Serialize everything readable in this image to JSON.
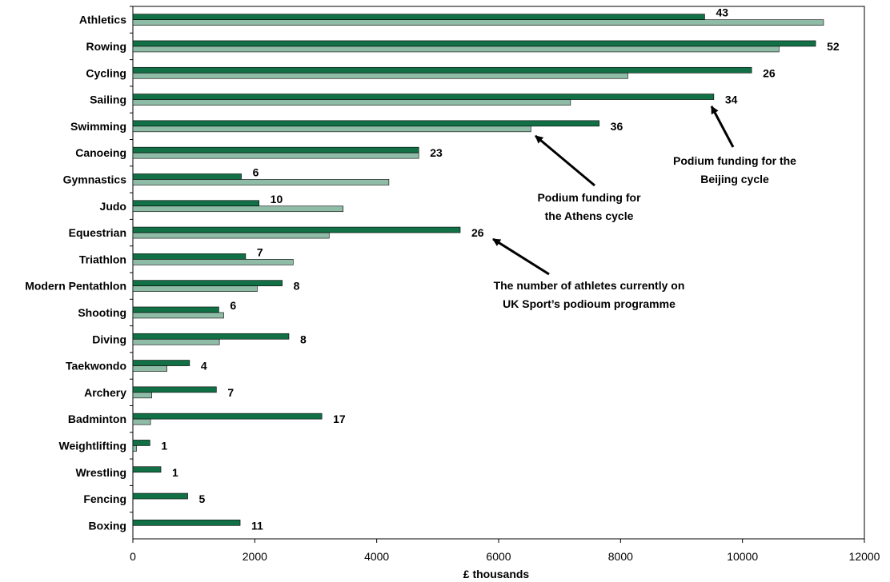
{
  "chart_data": {
    "type": "bar",
    "orientation": "horizontal",
    "xlabel": "£ thousands",
    "xlim": [
      0,
      12000
    ],
    "xticks": [
      0,
      2000,
      4000,
      6000,
      8000,
      10000,
      12000
    ],
    "grid": false,
    "categories": [
      "Athletics",
      "Rowing",
      "Cycling",
      "Sailing",
      "Swimming",
      "Canoeing",
      "Gymnastics",
      "Judo",
      "Equestrian",
      "Triathlon",
      "Modern Pentathlon",
      "Shooting",
      "Diving",
      "Taekwondo",
      "Archery",
      "Badminton",
      "Weightlifting",
      "Wrestling",
      "Fencing",
      "Boxing"
    ],
    "series": [
      {
        "color": "#127046",
        "values": [
          9380,
          11200,
          10150,
          9530,
          7650,
          4690,
          1780,
          2070,
          5370,
          1850,
          2450,
          1410,
          2560,
          930,
          1370,
          3100,
          280,
          460,
          900,
          1760
        ]
      },
      {
        "color": "#8fbca6",
        "values": [
          11330,
          10600,
          8120,
          7180,
          6530,
          4690,
          4200,
          3450,
          3220,
          2630,
          2040,
          1490,
          1420,
          560,
          310,
          290,
          60,
          0,
          0,
          0
        ]
      }
    ],
    "data_labels": [
      "43",
      "52",
      "26",
      "34",
      "36",
      "23",
      "6",
      "10",
      "26",
      "7",
      "8",
      "6",
      "8",
      "4",
      "7",
      "17",
      "1",
      "1",
      "5",
      "11"
    ],
    "annotations": [
      {
        "lines": [
          "Podium funding for the",
          "Beijing cycle"
        ]
      },
      {
        "lines": [
          "Podium funding for",
          "the Athens cycle"
        ]
      },
      {
        "lines": [
          "The number of athletes currently on",
          "UK Sport’s podioum programme"
        ]
      }
    ]
  }
}
